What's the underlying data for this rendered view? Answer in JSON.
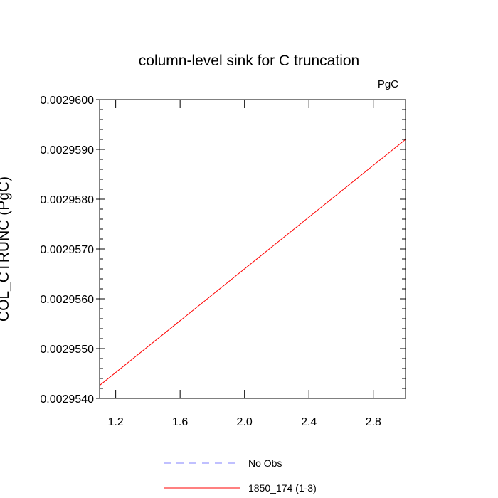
{
  "chart_data": {
    "type": "line",
    "title": "column-level sink for C truncation",
    "units_label": "PgC",
    "ylabel": "COL_CTRUNC (PgC)",
    "xlabel": "",
    "xlim": [
      1.1,
      3.0
    ],
    "ylim": [
      0.002954,
      0.00296
    ],
    "x_ticks": [
      1.2,
      1.6,
      2.0,
      2.4,
      2.8
    ],
    "x_tick_labels": [
      "1.2",
      "1.6",
      "2.0",
      "2.4",
      "2.8"
    ],
    "y_ticks": [
      0.002954,
      0.002955,
      0.002956,
      0.002957,
      0.002958,
      0.002959,
      0.00296
    ],
    "y_tick_labels": [
      "0.0029540",
      "0.0029550",
      "0.0029560",
      "0.0029570",
      "0.0029580",
      "0.0029590",
      "0.0029600"
    ],
    "grid": false,
    "legend_position": "bottom-center",
    "series": [
      {
        "name": "No Obs",
        "color": "#8080ff",
        "dash": "dashed",
        "x": [],
        "y": []
      },
      {
        "name": "1850_174 (1-3)",
        "color": "#ff0000",
        "dash": "solid",
        "x": [
          1.0,
          3.0
        ],
        "y": [
          0.002954,
          0.0029592
        ]
      }
    ]
  }
}
